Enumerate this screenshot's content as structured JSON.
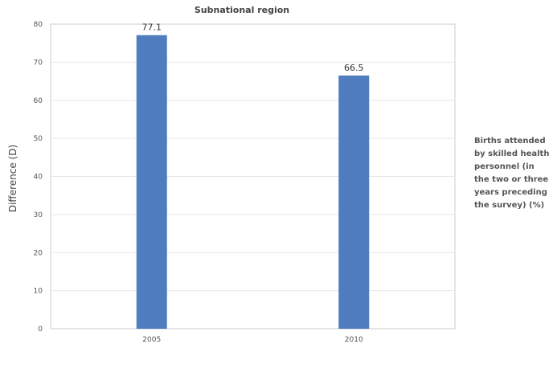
{
  "chart_data": {
    "type": "bar",
    "title": "Subnational region",
    "ylabel": "Difference (D)",
    "xlabel": "",
    "categories": [
      "2005",
      "2010"
    ],
    "series": [
      {
        "name": "Births attended by skilled health personnel (in the two or three years preceding the survey) (%)",
        "values": [
          77.1,
          66.5
        ]
      }
    ],
    "ylim": [
      0,
      80
    ],
    "yticks": [
      0,
      10,
      20,
      30,
      40,
      50,
      60,
      70,
      80
    ],
    "grid": true,
    "legend_position": "right",
    "bar_color": "#4f7dbd"
  }
}
